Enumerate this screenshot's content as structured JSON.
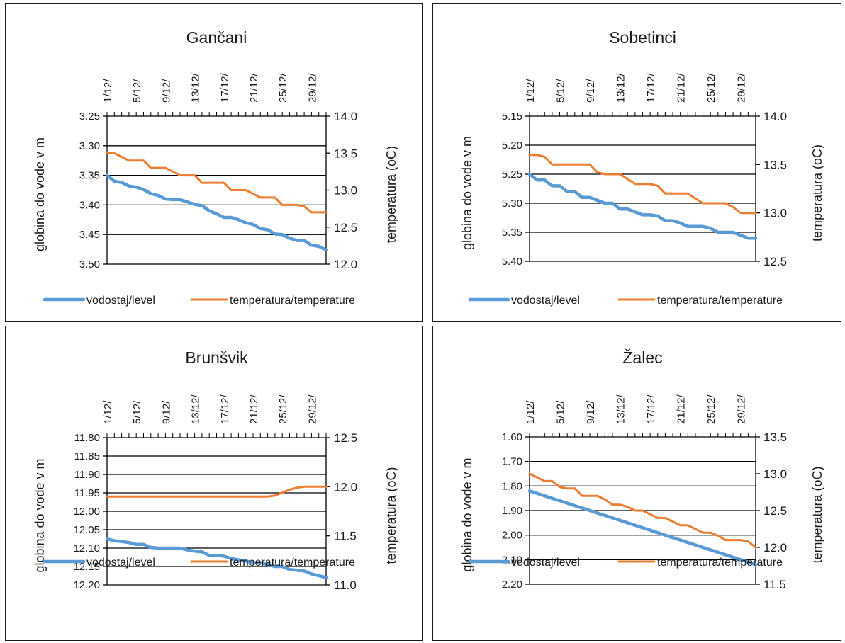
{
  "colors": {
    "level": "#5b9bd5",
    "temperature": "#ed7d31",
    "grid": "#000000",
    "text": "#1a1a1a"
  },
  "charts": [
    {
      "chart_data": {
        "type": "line",
        "title": "Gančani",
        "x_ticks": [
          "1/12/",
          "5/12/",
          "9/12/",
          "13/12/",
          "17/12/",
          "21/12/",
          "25/12/",
          "29/12/"
        ],
        "x_days": [
          1,
          31
        ],
        "ylabel": "globina do vode v m",
        "y2label": "temperatura (oC)",
        "y_ticks": [
          "3.25",
          "3.30",
          "3.35",
          "3.40",
          "3.45",
          "3.50"
        ],
        "y_range": [
          3.25,
          3.5
        ],
        "y_inverted": true,
        "y2_ticks": [
          "14.0",
          "13.5",
          "13.0",
          "12.5",
          "12.0"
        ],
        "y2_range": [
          12.0,
          14.0
        ],
        "legend": [
          "vodostaj/level",
          "temperatura/temperature"
        ],
        "series": [
          {
            "name": "vodostaj/level",
            "axis": "left",
            "x": [
              1,
              2,
              3,
              4,
              5,
              6,
              7,
              8,
              9,
              10,
              11,
              12,
              13,
              14,
              15,
              16,
              17,
              18,
              19,
              20,
              21,
              22,
              23,
              24,
              25,
              26,
              27,
              28,
              29,
              30,
              31
            ],
            "values": [
              3.35,
              3.36,
              3.362,
              3.368,
              3.37,
              3.374,
              3.381,
              3.384,
              3.39,
              3.391,
              3.391,
              3.395,
              3.399,
              3.401,
              3.41,
              3.415,
              3.421,
              3.421,
              3.425,
              3.43,
              3.433,
              3.44,
              3.442,
              3.449,
              3.45,
              3.456,
              3.46,
              3.46,
              3.468,
              3.47,
              3.476
            ]
          },
          {
            "name": "temperatura/temperature",
            "axis": "right",
            "x": [
              1,
              2,
              3,
              4,
              5,
              6,
              7,
              8,
              9,
              10,
              11,
              12,
              13,
              14,
              15,
              16,
              17,
              18,
              19,
              20,
              21,
              22,
              23,
              24,
              25,
              26,
              27,
              28,
              29,
              30,
              31
            ],
            "values": [
              13.5,
              13.5,
              13.45,
              13.4,
              13.4,
              13.4,
              13.3,
              13.3,
              13.3,
              13.25,
              13.2,
              13.2,
              13.2,
              13.1,
              13.1,
              13.1,
              13.1,
              13.0,
              13.0,
              13.0,
              12.95,
              12.9,
              12.9,
              12.9,
              12.8,
              12.8,
              12.8,
              12.78,
              12.7,
              12.7,
              12.7
            ]
          }
        ]
      }
    },
    {
      "chart_data": {
        "type": "line",
        "title": "Sobetinci",
        "x_ticks": [
          "1/12/",
          "5/12/",
          "9/12/",
          "13/12/",
          "17/12/",
          "21/12/",
          "25/12/",
          "29/12/"
        ],
        "x_days": [
          1,
          31
        ],
        "ylabel": "globina do vode v m",
        "y2label": "temperatura (oC)",
        "y_ticks": [
          "5.15",
          "5.20",
          "5.25",
          "5.30",
          "5.35",
          "5.40"
        ],
        "y_range": [
          5.15,
          5.4
        ],
        "y_inverted": true,
        "y2_ticks": [
          "14.0",
          "13.5",
          "13.0",
          "12.5"
        ],
        "y2_range": [
          12.5,
          14.0
        ],
        "legend": [
          "vodostaj/level",
          "temperatura/temperature"
        ],
        "series": [
          {
            "name": "vodostaj/level",
            "axis": "left",
            "x": [
              1,
              2,
              3,
              4,
              5,
              6,
              7,
              8,
              9,
              10,
              11,
              12,
              13,
              14,
              15,
              16,
              17,
              18,
              19,
              20,
              21,
              22,
              23,
              24,
              25,
              26,
              27,
              28,
              29,
              30,
              31
            ],
            "values": [
              5.25,
              5.26,
              5.26,
              5.27,
              5.27,
              5.28,
              5.28,
              5.29,
              5.29,
              5.295,
              5.3,
              5.3,
              5.31,
              5.31,
              5.315,
              5.32,
              5.32,
              5.322,
              5.33,
              5.33,
              5.334,
              5.34,
              5.34,
              5.34,
              5.343,
              5.35,
              5.35,
              5.35,
              5.355,
              5.36,
              5.36
            ]
          },
          {
            "name": "temperatura/temperature",
            "axis": "right",
            "x": [
              1,
              2,
              3,
              4,
              5,
              6,
              7,
              8,
              9,
              10,
              11,
              12,
              13,
              14,
              15,
              16,
              17,
              18,
              19,
              20,
              21,
              22,
              23,
              24,
              25,
              26,
              27,
              28,
              29,
              30,
              31
            ],
            "values": [
              13.6,
              13.6,
              13.58,
              13.5,
              13.5,
              13.5,
              13.5,
              13.5,
              13.5,
              13.42,
              13.4,
              13.4,
              13.4,
              13.35,
              13.3,
              13.3,
              13.3,
              13.28,
              13.2,
              13.2,
              13.2,
              13.2,
              13.15,
              13.1,
              13.1,
              13.1,
              13.1,
              13.06,
              13.0,
              13.0,
              13.0
            ]
          }
        ]
      }
    },
    {
      "chart_data": {
        "type": "line",
        "title": "Brunšvik",
        "x_ticks": [
          "1/12/",
          "5/12/",
          "9/12/",
          "13/12/",
          "17/12/",
          "21/12/",
          "25/12/",
          "29/12/"
        ],
        "x_days": [
          1,
          31
        ],
        "ylabel": "globina do vode v m",
        "y2label": "temperatura (oC)",
        "y_ticks": [
          "11.80",
          "11.85",
          "11.90",
          "11.95",
          "12.00",
          "12.05",
          "12.10",
          "12.15",
          "12.20"
        ],
        "y_range": [
          11.8,
          12.2
        ],
        "y_inverted": true,
        "y2_ticks": [
          "12.5",
          "12.0",
          "11.5",
          "11.0"
        ],
        "y2_range": [
          11.0,
          12.5
        ],
        "legend": [
          "vodostaj/level",
          "temperatura/temperature"
        ],
        "series": [
          {
            "name": "vodostaj/level",
            "axis": "left",
            "x": [
              1,
              2,
              3,
              4,
              5,
              6,
              7,
              8,
              9,
              10,
              11,
              12,
              13,
              14,
              15,
              16,
              17,
              18,
              19,
              20,
              21,
              22,
              23,
              24,
              25,
              26,
              27,
              28,
              29,
              30,
              31
            ],
            "values": [
              12.075,
              12.08,
              12.082,
              12.085,
              12.09,
              12.09,
              12.098,
              12.1,
              12.1,
              12.1,
              12.1,
              12.105,
              12.108,
              12.11,
              12.12,
              12.12,
              12.122,
              12.128,
              12.132,
              12.135,
              12.14,
              12.14,
              12.145,
              12.15,
              12.15,
              12.158,
              12.16,
              12.162,
              12.17,
              12.175,
              12.18
            ]
          },
          {
            "name": "temperatura/temperature",
            "axis": "right",
            "x": [
              1,
              2,
              3,
              4,
              5,
              6,
              7,
              8,
              9,
              10,
              11,
              12,
              13,
              14,
              15,
              16,
              17,
              18,
              19,
              20,
              21,
              22,
              23,
              24,
              25,
              26,
              27,
              28,
              29,
              30,
              31
            ],
            "values": [
              11.9,
              11.9,
              11.9,
              11.9,
              11.9,
              11.9,
              11.9,
              11.9,
              11.9,
              11.9,
              11.9,
              11.9,
              11.9,
              11.9,
              11.9,
              11.9,
              11.9,
              11.9,
              11.9,
              11.9,
              11.9,
              11.9,
              11.9,
              11.91,
              11.94,
              11.97,
              11.99,
              12.0,
              12.0,
              12.0,
              12.0
            ]
          }
        ]
      }
    },
    {
      "chart_data": {
        "type": "line",
        "title": "Žalec",
        "x_ticks": [
          "1/12/",
          "5/12/",
          "9/12/",
          "13/12/",
          "17/12/",
          "21/12/",
          "25/12/",
          "29/12/"
        ],
        "x_days": [
          1,
          31
        ],
        "ylabel": "globina do vode v m",
        "y2label": "temperatura (oC)",
        "y_ticks": [
          "1.60",
          "1.70",
          "1.80",
          "1.90",
          "2.00",
          "2.10",
          "2.20"
        ],
        "y_range": [
          1.6,
          2.2
        ],
        "y_inverted": true,
        "y2_ticks": [
          "13.5",
          "13.0",
          "12.5",
          "12.0",
          "11.5"
        ],
        "y2_range": [
          11.5,
          13.5
        ],
        "legend": [
          "vodostaj/level",
          "temperatura/temperature"
        ],
        "series": [
          {
            "name": "vodostaj/level",
            "axis": "left",
            "x": [
              1,
              2,
              3,
              4,
              5,
              6,
              7,
              8,
              9,
              10,
              11,
              12,
              13,
              14,
              15,
              16,
              17,
              18,
              19,
              20,
              21,
              22,
              23,
              24,
              25,
              26,
              27,
              28,
              29,
              30,
              31
            ],
            "values": [
              1.82,
              1.83,
              1.84,
              1.85,
              1.86,
              1.87,
              1.88,
              1.89,
              1.9,
              1.91,
              1.92,
              1.93,
              1.94,
              1.95,
              1.96,
              1.97,
              1.98,
              1.99,
              2.0,
              2.01,
              2.02,
              2.03,
              2.04,
              2.05,
              2.06,
              2.07,
              2.08,
              2.09,
              2.1,
              2.11,
              2.12
            ]
          },
          {
            "name": "temperatura/temperature",
            "axis": "right",
            "x": [
              1,
              2,
              3,
              4,
              5,
              6,
              7,
              8,
              9,
              10,
              11,
              12,
              13,
              14,
              15,
              16,
              17,
              18,
              19,
              20,
              21,
              22,
              23,
              24,
              25,
              26,
              27,
              28,
              29,
              30,
              31
            ],
            "values": [
              13.0,
              12.95,
              12.9,
              12.9,
              12.82,
              12.8,
              12.8,
              12.7,
              12.7,
              12.7,
              12.65,
              12.58,
              12.58,
              12.55,
              12.5,
              12.5,
              12.45,
              12.4,
              12.4,
              12.35,
              12.3,
              12.3,
              12.25,
              12.2,
              12.2,
              12.16,
              12.1,
              12.1,
              12.1,
              12.08,
              12.0
            ]
          }
        ]
      }
    }
  ]
}
